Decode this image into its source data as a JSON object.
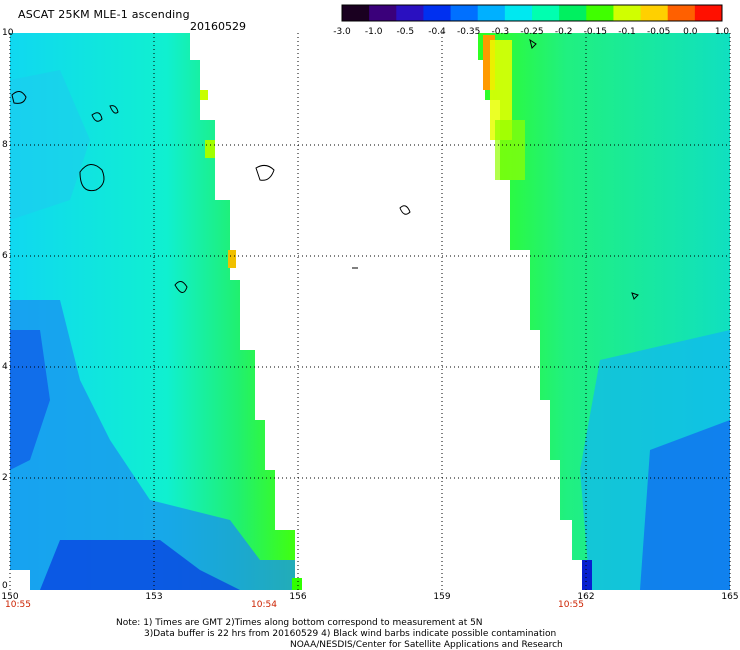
{
  "header": {
    "title": "ASCAT 25KM MLE-1 ascending",
    "date": "20160529"
  },
  "colorbar": {
    "labels": [
      "-3.0",
      "-1.0",
      "-0.5",
      "-0.4",
      "-0.35",
      "-0.3",
      "-0.25",
      "-0.2",
      "-0.15",
      "-0.1",
      "-0.05",
      "0.0",
      "1.0"
    ],
    "colors": [
      "#1a0020",
      "#3a007a",
      "#2a10c0",
      "#0030f0",
      "#0070ff",
      "#00b0ff",
      "#00e8f0",
      "#00ffb0",
      "#00f060",
      "#40ff00",
      "#d0ff00",
      "#ffd000",
      "#ff6000",
      "#ff1000"
    ]
  },
  "axes": {
    "lat_labels": [
      "10",
      "8",
      "6",
      "4",
      "2",
      "0"
    ],
    "lon_labels": [
      "150",
      "153",
      "156",
      "159",
      "162",
      "165"
    ],
    "time_labels": [
      "10:55",
      "10:54",
      "10:55"
    ]
  },
  "notes": {
    "line1": "Note: 1) Times are GMT 2)Times along bottom correspond to measurement at 5N",
    "line2": "3)Data buffer is 22 hrs from 20160529 4) Black wind barbs indicate possible contamination",
    "line3": "NOAA/NESDIS/Center for Satellite Applications and Research"
  },
  "map": {
    "lat_range": [
      0,
      10
    ],
    "lon_range": [
      150,
      165
    ],
    "grid_lines": "dotted"
  }
}
